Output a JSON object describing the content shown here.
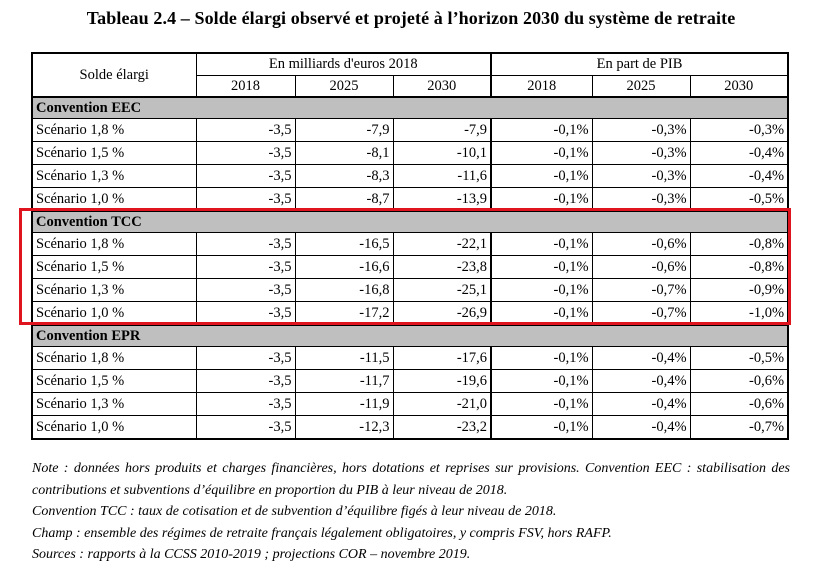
{
  "title": "Tableau 2.4 – Solde élargi observé et projeté à l’horizon 2030 du système de retraite",
  "header": {
    "row_label": "Solde élargi",
    "group_eur": "En milliards d'euros 2018",
    "group_pib": "En part de PIB",
    "years": [
      "2018",
      "2025",
      "2030"
    ]
  },
  "sections": [
    {
      "name": "Convention EEC",
      "rows": [
        {
          "label": "Scénario 1,8 %",
          "values": [
            "-3,5",
            "-7,9",
            "-7,9",
            "-0,1%",
            "-0,3%",
            "-0,3%"
          ]
        },
        {
          "label": "Scénario 1,5 %",
          "values": [
            "-3,5",
            "-8,1",
            "-10,1",
            "-0,1%",
            "-0,3%",
            "-0,4%"
          ]
        },
        {
          "label": "Scénario 1,3 %",
          "values": [
            "-3,5",
            "-8,3",
            "-11,6",
            "-0,1%",
            "-0,3%",
            "-0,4%"
          ]
        },
        {
          "label": "Scénario 1,0 %",
          "values": [
            "-3,5",
            "-8,7",
            "-13,9",
            "-0,1%",
            "-0,3%",
            "-0,5%"
          ]
        }
      ]
    },
    {
      "name": "Convention TCC",
      "rows": [
        {
          "label": "Scénario 1,8 %",
          "values": [
            "-3,5",
            "-16,5",
            "-22,1",
            "-0,1%",
            "-0,6%",
            "-0,8%"
          ]
        },
        {
          "label": "Scénario 1,5 %",
          "values": [
            "-3,5",
            "-16,6",
            "-23,8",
            "-0,1%",
            "-0,6%",
            "-0,8%"
          ]
        },
        {
          "label": "Scénario 1,3 %",
          "values": [
            "-3,5",
            "-16,8",
            "-25,1",
            "-0,1%",
            "-0,7%",
            "-0,9%"
          ]
        },
        {
          "label": "Scénario 1,0 %",
          "values": [
            "-3,5",
            "-17,2",
            "-26,9",
            "-0,1%",
            "-0,7%",
            "-1,0%"
          ]
        }
      ]
    },
    {
      "name": "Convention EPR",
      "rows": [
        {
          "label": "Scénario 1,8 %",
          "values": [
            "-3,5",
            "-11,5",
            "-17,6",
            "-0,1%",
            "-0,4%",
            "-0,5%"
          ]
        },
        {
          "label": "Scénario 1,5 %",
          "values": [
            "-3,5",
            "-11,7",
            "-19,6",
            "-0,1%",
            "-0,4%",
            "-0,6%"
          ]
        },
        {
          "label": "Scénario 1,3 %",
          "values": [
            "-3,5",
            "-11,9",
            "-21,0",
            "-0,1%",
            "-0,4%",
            "-0,6%"
          ]
        },
        {
          "label": "Scénario 1,0 %",
          "values": [
            "-3,5",
            "-12,3",
            "-23,2",
            "-0,1%",
            "-0,4%",
            "-0,7%"
          ]
        }
      ]
    }
  ],
  "highlight": {
    "section": "Convention TCC",
    "color": "#e0141e"
  },
  "section_bg_color": "#bfbfbf",
  "notes": {
    "note": "Note : données hors produits et charges financières, hors dotations et reprises sur provisions. Convention EEC : stabilisation des contributions et subventions d’équilibre en proportion du PIB à leur niveau de 2018.",
    "tcc": "Convention TCC : taux de cotisation et de subvention d’équilibre figés à leur niveau de 2018.",
    "champ": "Champ : ensemble des régimes de retraite français légalement obligatoires, y compris FSV, hors RAFP.",
    "sources": "Sources : rapports à la CCSS 2010-2019 ; projections COR – novembre 2019."
  }
}
